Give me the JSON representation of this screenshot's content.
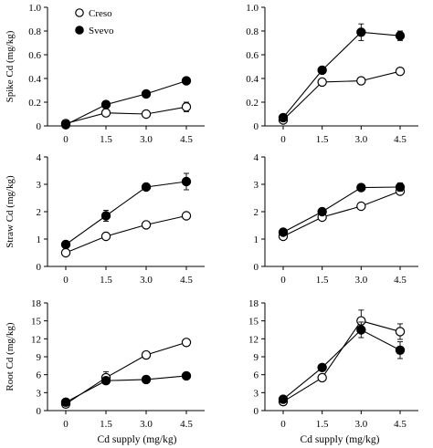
{
  "figure": {
    "xlabel": "Cd supply (mg/kg)",
    "legend": [
      {
        "name": "Creso",
        "marker": "open-circle"
      },
      {
        "name": "Svevo",
        "marker": "filled-circle"
      }
    ],
    "colors": {
      "line": "#000000",
      "open_fill": "#ffffff",
      "filled_fill": "#000000"
    }
  },
  "chart_data": [
    {
      "type": "line",
      "ylabel": "Spike Cd (mg/kg)",
      "x": [
        0,
        1.5,
        3.0,
        4.5
      ],
      "xtick_labels": [
        "0",
        "1.5",
        "3.0",
        "4.5"
      ],
      "ylim": [
        0,
        1.0
      ],
      "yticks": [
        0,
        0.2,
        0.4,
        0.6,
        0.8,
        1.0
      ],
      "ytick_labels": [
        "0",
        "0.2",
        "0.4",
        "0.6",
        "0.8",
        "1.0"
      ],
      "series": [
        {
          "name": "Creso",
          "values": [
            0.02,
            0.11,
            0.1,
            0.16
          ],
          "errors": [
            0.01,
            0.02,
            0.02,
            0.04
          ]
        },
        {
          "name": "Svevo",
          "values": [
            0.01,
            0.18,
            0.27,
            0.38
          ],
          "errors": [
            0.01,
            0.02,
            0.02,
            0.02
          ]
        }
      ],
      "legend_placement": "top-left",
      "grid": false
    },
    {
      "type": "line",
      "ylabel": "",
      "x": [
        0,
        1.5,
        3.0,
        4.5
      ],
      "xtick_labels": [
        "0",
        "1.5",
        "3.0",
        "4.5"
      ],
      "ylim": [
        0,
        1.0
      ],
      "yticks": [
        0,
        0.2,
        0.4,
        0.6,
        0.8,
        1.0
      ],
      "ytick_labels": [
        "0",
        "0.2",
        "0.4",
        "0.6",
        "0.8",
        "1.0"
      ],
      "series": [
        {
          "name": "Creso",
          "values": [
            0.05,
            0.37,
            0.38,
            0.46
          ],
          "errors": [
            0.01,
            0.02,
            0.02,
            0.02
          ]
        },
        {
          "name": "Svevo",
          "values": [
            0.07,
            0.47,
            0.79,
            0.76
          ],
          "errors": [
            0.01,
            0.02,
            0.07,
            0.04
          ]
        }
      ],
      "grid": false
    },
    {
      "type": "line",
      "ylabel": "Straw Cd (mg/kg)",
      "x": [
        0,
        1.5,
        3.0,
        4.5
      ],
      "xtick_labels": [
        "0",
        "1.5",
        "3.0",
        "4.5"
      ],
      "ylim": [
        0,
        4
      ],
      "yticks": [
        0,
        1,
        2,
        3,
        4
      ],
      "ytick_labels": [
        "0",
        "1",
        "2",
        "3",
        "4"
      ],
      "series": [
        {
          "name": "Creso",
          "values": [
            0.5,
            1.1,
            1.52,
            1.85
          ],
          "errors": [
            0.05,
            0.05,
            0.05,
            0.05
          ]
        },
        {
          "name": "Svevo",
          "values": [
            0.8,
            1.85,
            2.9,
            3.1
          ],
          "errors": [
            0.05,
            0.2,
            0.05,
            0.3
          ]
        }
      ],
      "grid": false
    },
    {
      "type": "line",
      "ylabel": "",
      "x": [
        0,
        1.5,
        3.0,
        4.5
      ],
      "xtick_labels": [
        "0",
        "1.5",
        "3.0",
        "4.5"
      ],
      "ylim": [
        0,
        4
      ],
      "yticks": [
        0,
        1,
        2,
        3,
        4
      ],
      "ytick_labels": [
        "0",
        "1",
        "2",
        "3",
        "4"
      ],
      "series": [
        {
          "name": "Creso",
          "values": [
            1.1,
            1.8,
            2.2,
            2.75
          ],
          "errors": [
            0.05,
            0.05,
            0.05,
            0.12
          ]
        },
        {
          "name": "Svevo",
          "values": [
            1.25,
            2.0,
            2.88,
            2.9
          ],
          "errors": [
            0.05,
            0.08,
            0.05,
            0.15
          ]
        }
      ],
      "grid": false
    },
    {
      "type": "line",
      "ylabel": "Root Cd (mg/kg)",
      "x": [
        0,
        1.5,
        3.0,
        4.5
      ],
      "xtick_labels": [
        "0",
        "1.5",
        "3.0",
        "4.5"
      ],
      "ylim": [
        0,
        18
      ],
      "yticks": [
        0,
        3,
        6,
        9,
        12,
        15,
        18
      ],
      "ytick_labels": [
        "0",
        "3",
        "6",
        "9",
        "12",
        "15",
        "18"
      ],
      "series": [
        {
          "name": "Creso",
          "values": [
            1.1,
            5.5,
            9.3,
            11.4
          ],
          "errors": [
            0.2,
            1.0,
            0.3,
            0.3
          ]
        },
        {
          "name": "Svevo",
          "values": [
            1.4,
            5.0,
            5.2,
            5.8
          ],
          "errors": [
            0.2,
            0.5,
            0.3,
            0.3
          ]
        }
      ],
      "grid": false
    },
    {
      "type": "line",
      "ylabel": "",
      "x": [
        0,
        1.5,
        3.0,
        4.5
      ],
      "xtick_labels": [
        "0",
        "1.5",
        "3.0",
        "4.5"
      ],
      "ylim": [
        0,
        18
      ],
      "yticks": [
        0,
        3,
        6,
        9,
        12,
        15,
        18
      ],
      "ytick_labels": [
        "0",
        "3",
        "6",
        "9",
        "12",
        "15",
        "18"
      ],
      "series": [
        {
          "name": "Creso",
          "values": [
            1.5,
            5.5,
            15.0,
            13.2
          ],
          "errors": [
            0.3,
            0.4,
            1.8,
            1.3
          ]
        },
        {
          "name": "Svevo",
          "values": [
            1.9,
            7.2,
            13.5,
            10.1
          ],
          "errors": [
            0.3,
            0.4,
            1.3,
            1.4
          ]
        }
      ],
      "grid": false
    }
  ]
}
